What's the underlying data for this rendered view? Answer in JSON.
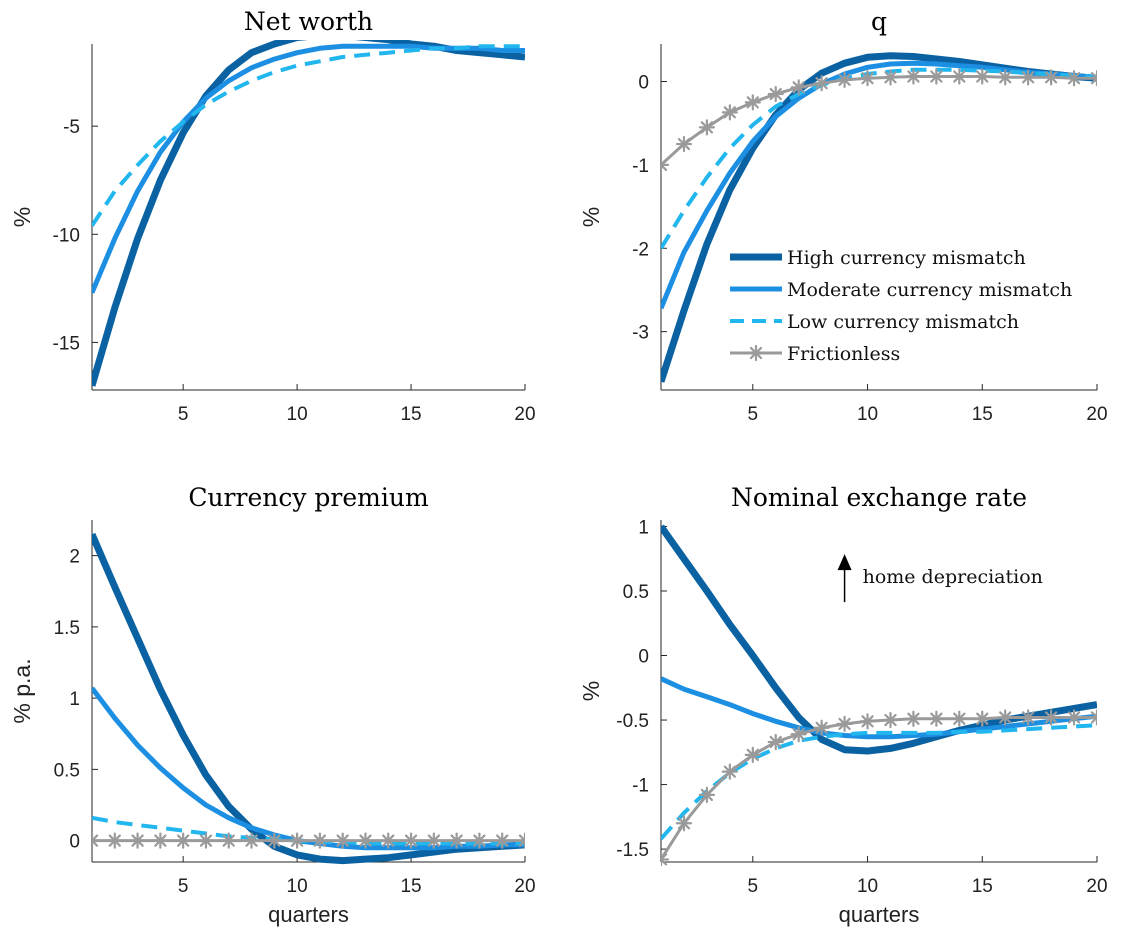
{
  "chart_data": [
    {
      "type": "line",
      "title": "Net worth",
      "xlabel": "",
      "ylabel": "%",
      "xlim": [
        1,
        20
      ],
      "ylim": [
        -17.2,
        -1.2
      ],
      "xticks": [
        5,
        10,
        15,
        20
      ],
      "yticks": [
        -15,
        -10,
        -5
      ],
      "series": [
        {
          "key": "high",
          "x": [
            1,
            2,
            3,
            4,
            5,
            6,
            7,
            8,
            9,
            10,
            11,
            12,
            13,
            14,
            15,
            16,
            17,
            18,
            19,
            20
          ],
          "values": [
            -17.0,
            -13.4,
            -10.2,
            -7.5,
            -5.3,
            -3.6,
            -2.4,
            -1.6,
            -1.2,
            -0.9,
            -0.8,
            -0.8,
            -0.9,
            -1.0,
            -1.2,
            -1.3,
            -1.5,
            -1.6,
            -1.7,
            -1.8
          ]
        },
        {
          "key": "moderate",
          "x": [
            1,
            2,
            3,
            4,
            5,
            6,
            7,
            8,
            9,
            10,
            11,
            12,
            13,
            14,
            15,
            16,
            17,
            18,
            19,
            20
          ],
          "values": [
            -12.7,
            -10.2,
            -8.0,
            -6.2,
            -4.8,
            -3.7,
            -2.9,
            -2.3,
            -1.9,
            -1.6,
            -1.4,
            -1.3,
            -1.3,
            -1.3,
            -1.3,
            -1.4,
            -1.4,
            -1.4,
            -1.5,
            -1.5
          ]
        },
        {
          "key": "low",
          "x": [
            1,
            2,
            3,
            4,
            5,
            6,
            7,
            8,
            9,
            10,
            11,
            12,
            13,
            14,
            15,
            16,
            17,
            18,
            19,
            20
          ],
          "values": [
            -9.6,
            -8.0,
            -6.8,
            -5.7,
            -4.8,
            -4.0,
            -3.4,
            -2.9,
            -2.5,
            -2.2,
            -2.0,
            -1.8,
            -1.7,
            -1.6,
            -1.5,
            -1.4,
            -1.4,
            -1.3,
            -1.3,
            -1.3
          ]
        }
      ]
    },
    {
      "type": "line",
      "title": "q",
      "xlabel": "",
      "ylabel": "%",
      "xlim": [
        1,
        20
      ],
      "ylim": [
        -3.7,
        0.45
      ],
      "xticks": [
        5,
        10,
        15,
        20
      ],
      "yticks": [
        -3,
        -2,
        -1,
        0
      ],
      "series": [
        {
          "key": "high",
          "x": [
            1,
            2,
            3,
            4,
            5,
            6,
            7,
            8,
            9,
            10,
            11,
            12,
            13,
            14,
            15,
            16,
            17,
            18,
            19,
            20
          ],
          "values": [
            -3.6,
            -2.75,
            -1.95,
            -1.3,
            -0.8,
            -0.4,
            -0.1,
            0.1,
            0.22,
            0.29,
            0.31,
            0.3,
            0.27,
            0.24,
            0.2,
            0.16,
            0.12,
            0.09,
            0.06,
            0.04
          ]
        },
        {
          "key": "moderate",
          "x": [
            1,
            2,
            3,
            4,
            5,
            6,
            7,
            8,
            9,
            10,
            11,
            12,
            13,
            14,
            15,
            16,
            17,
            18,
            19,
            20
          ],
          "values": [
            -2.72,
            -2.05,
            -1.55,
            -1.1,
            -0.72,
            -0.42,
            -0.2,
            -0.03,
            0.09,
            0.17,
            0.21,
            0.22,
            0.21,
            0.19,
            0.17,
            0.14,
            0.11,
            0.09,
            0.07,
            0.05
          ]
        },
        {
          "key": "low",
          "x": [
            1,
            2,
            3,
            4,
            5,
            6,
            7,
            8,
            9,
            10,
            11,
            12,
            13,
            14,
            15,
            16,
            17,
            18,
            19,
            20
          ],
          "values": [
            -2.0,
            -1.55,
            -1.15,
            -0.8,
            -0.52,
            -0.3,
            -0.15,
            -0.04,
            0.04,
            0.09,
            0.12,
            0.14,
            0.14,
            0.14,
            0.13,
            0.12,
            0.1,
            0.09,
            0.07,
            0.06
          ]
        },
        {
          "key": "frictionless",
          "x": [
            1,
            2,
            3,
            4,
            5,
            6,
            7,
            8,
            9,
            10,
            11,
            12,
            13,
            14,
            15,
            16,
            17,
            18,
            19,
            20
          ],
          "values": [
            -1.0,
            -0.75,
            -0.55,
            -0.37,
            -0.25,
            -0.15,
            -0.07,
            -0.02,
            0.02,
            0.04,
            0.05,
            0.06,
            0.06,
            0.06,
            0.06,
            0.05,
            0.05,
            0.05,
            0.04,
            0.04
          ]
        }
      ],
      "legend": {
        "placement": "center-right",
        "entries": [
          {
            "key": "high",
            "label": "High currency mismatch"
          },
          {
            "key": "moderate",
            "label": "Moderate currency mismatch"
          },
          {
            "key": "low",
            "label": "Low currency mismatch"
          },
          {
            "key": "frictionless",
            "label": "Frictionless"
          }
        ]
      }
    },
    {
      "type": "line",
      "title": "Currency premium",
      "xlabel": "quarters",
      "ylabel": "% p.a.",
      "xlim": [
        1,
        20
      ],
      "ylim": [
        -0.15,
        2.25
      ],
      "xticks": [
        5,
        10,
        15,
        20
      ],
      "yticks": [
        0,
        0.5,
        1,
        1.5,
        2
      ],
      "series": [
        {
          "key": "high",
          "x": [
            1,
            2,
            3,
            4,
            5,
            6,
            7,
            8,
            9,
            10,
            11,
            12,
            13,
            14,
            15,
            16,
            17,
            18,
            19,
            20
          ],
          "values": [
            2.15,
            1.78,
            1.42,
            1.06,
            0.74,
            0.46,
            0.24,
            0.08,
            -0.04,
            -0.1,
            -0.13,
            -0.14,
            -0.13,
            -0.12,
            -0.1,
            -0.08,
            -0.06,
            -0.05,
            -0.04,
            -0.03
          ]
        },
        {
          "key": "moderate",
          "x": [
            1,
            2,
            3,
            4,
            5,
            6,
            7,
            8,
            9,
            10,
            11,
            12,
            13,
            14,
            15,
            16,
            17,
            18,
            19,
            20
          ],
          "values": [
            1.07,
            0.86,
            0.67,
            0.51,
            0.37,
            0.25,
            0.16,
            0.09,
            0.04,
            0.0,
            -0.02,
            -0.04,
            -0.05,
            -0.05,
            -0.05,
            -0.05,
            -0.04,
            -0.04,
            -0.03,
            -0.03
          ]
        },
        {
          "key": "low",
          "x": [
            1,
            2,
            3,
            4,
            5,
            6,
            7,
            8,
            9,
            10,
            11,
            12,
            13,
            14,
            15,
            16,
            17,
            18,
            19,
            20
          ],
          "values": [
            0.16,
            0.13,
            0.11,
            0.09,
            0.07,
            0.05,
            0.03,
            0.02,
            0.01,
            0.0,
            -0.01,
            -0.01,
            -0.02,
            -0.02,
            -0.02,
            -0.02,
            -0.02,
            -0.02,
            -0.02,
            -0.02
          ]
        },
        {
          "key": "frictionless",
          "x": [
            1,
            2,
            3,
            4,
            5,
            6,
            7,
            8,
            9,
            10,
            11,
            12,
            13,
            14,
            15,
            16,
            17,
            18,
            19,
            20
          ],
          "values": [
            0,
            0,
            0,
            0,
            0,
            0,
            0,
            0,
            0,
            0,
            0,
            0,
            0,
            0,
            0,
            0,
            0,
            0,
            0,
            0
          ]
        }
      ]
    },
    {
      "type": "line",
      "title": "Nominal exchange rate",
      "xlabel": "quarters",
      "ylabel": "%",
      "xlim": [
        1,
        20
      ],
      "ylim": [
        -1.6,
        1.05
      ],
      "xticks": [
        5,
        10,
        15,
        20
      ],
      "yticks": [
        -1.5,
        -1,
        -0.5,
        0,
        0.5,
        1
      ],
      "series": [
        {
          "key": "high",
          "x": [
            1,
            2,
            3,
            4,
            5,
            6,
            7,
            8,
            9,
            10,
            11,
            12,
            13,
            14,
            15,
            16,
            17,
            18,
            19,
            20
          ],
          "values": [
            1.0,
            0.75,
            0.5,
            0.24,
            0.0,
            -0.25,
            -0.48,
            -0.65,
            -0.73,
            -0.74,
            -0.72,
            -0.68,
            -0.63,
            -0.58,
            -0.54,
            -0.5,
            -0.47,
            -0.44,
            -0.41,
            -0.38
          ]
        },
        {
          "key": "moderate",
          "x": [
            1,
            2,
            3,
            4,
            5,
            6,
            7,
            8,
            9,
            10,
            11,
            12,
            13,
            14,
            15,
            16,
            17,
            18,
            19,
            20
          ],
          "values": [
            -0.18,
            -0.26,
            -0.32,
            -0.38,
            -0.45,
            -0.51,
            -0.56,
            -0.6,
            -0.62,
            -0.63,
            -0.63,
            -0.62,
            -0.61,
            -0.59,
            -0.57,
            -0.55,
            -0.53,
            -0.51,
            -0.49,
            -0.47
          ]
        },
        {
          "key": "low",
          "x": [
            1,
            2,
            3,
            4,
            5,
            6,
            7,
            8,
            9,
            10,
            11,
            12,
            13,
            14,
            15,
            16,
            17,
            18,
            19,
            20
          ],
          "values": [
            -1.42,
            -1.22,
            -1.05,
            -0.91,
            -0.8,
            -0.72,
            -0.66,
            -0.63,
            -0.61,
            -0.6,
            -0.6,
            -0.6,
            -0.6,
            -0.59,
            -0.59,
            -0.58,
            -0.57,
            -0.56,
            -0.55,
            -0.54
          ]
        },
        {
          "key": "frictionless",
          "x": [
            1,
            2,
            3,
            4,
            5,
            6,
            7,
            8,
            9,
            10,
            11,
            12,
            13,
            14,
            15,
            16,
            17,
            18,
            19,
            20
          ],
          "values": [
            -1.58,
            -1.3,
            -1.08,
            -0.9,
            -0.77,
            -0.67,
            -0.61,
            -0.56,
            -0.53,
            -0.51,
            -0.5,
            -0.49,
            -0.49,
            -0.49,
            -0.49,
            -0.48,
            -0.48,
            -0.48,
            -0.48,
            -0.48
          ]
        }
      ],
      "annotation": {
        "text": "home depreciation",
        "arrow": "up",
        "x": 9,
        "y": 0.6
      }
    }
  ],
  "styles": {
    "high": {
      "color": "#0a62a3",
      "width": 7,
      "dash": ""
    },
    "moderate": {
      "color": "#1c8fe3",
      "width": 5,
      "dash": ""
    },
    "low": {
      "color": "#22b6ee",
      "width": 4,
      "dash": "16,9"
    },
    "frictionless": {
      "color": "#9a9a9a",
      "width": 3,
      "dash": "",
      "marker": "asterisk"
    }
  }
}
